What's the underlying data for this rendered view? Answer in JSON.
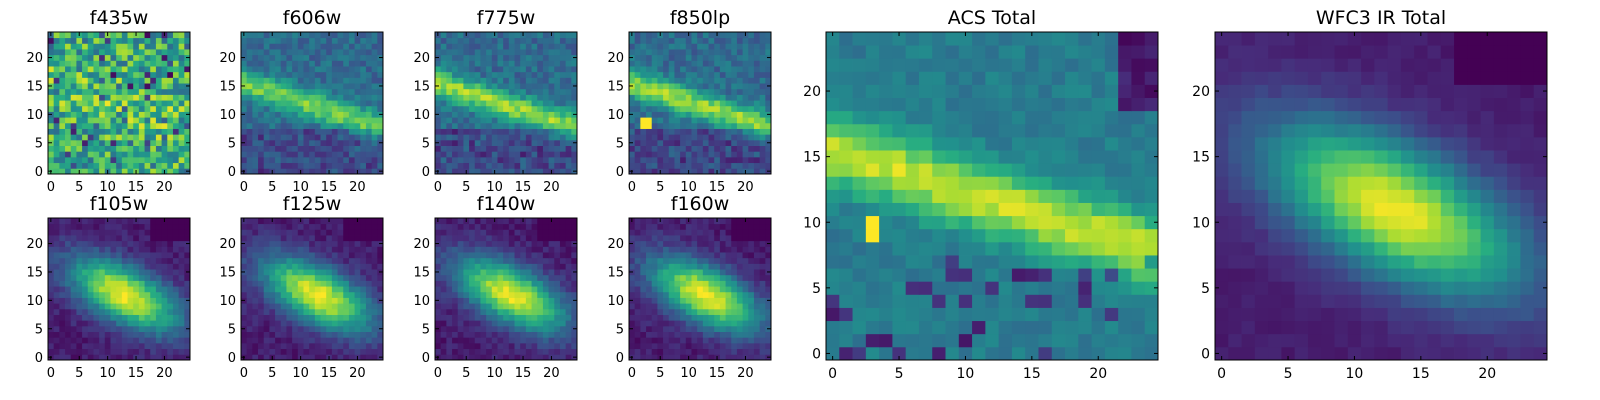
{
  "chart_data": [
    {
      "type": "heatmap",
      "title": "f435w",
      "xticks": [
        "0",
        "5",
        "10",
        "15",
        "20"
      ],
      "yticks": [
        "0",
        "5",
        "10",
        "15",
        "20"
      ],
      "xlim": [
        -0.5,
        24.5
      ],
      "ylim": [
        -0.5,
        24.5
      ],
      "colormap": "viridis",
      "profile": "noise"
    },
    {
      "type": "heatmap",
      "title": "f606w",
      "xticks": [
        "0",
        "5",
        "10",
        "15",
        "20"
      ],
      "yticks": [
        "0",
        "5",
        "10",
        "15",
        "20"
      ],
      "xlim": [
        -0.5,
        24.5
      ],
      "ylim": [
        -0.5,
        24.5
      ],
      "colormap": "viridis",
      "profile": "faint_band"
    },
    {
      "type": "heatmap",
      "title": "f775w",
      "xticks": [
        "0",
        "5",
        "10",
        "15",
        "20"
      ],
      "yticks": [
        "0",
        "5",
        "10",
        "15",
        "20"
      ],
      "xlim": [
        -0.5,
        24.5
      ],
      "ylim": [
        -0.5,
        24.5
      ],
      "colormap": "viridis",
      "profile": "band"
    },
    {
      "type": "heatmap",
      "title": "f850lp",
      "xticks": [
        "0",
        "5",
        "10",
        "15",
        "20"
      ],
      "yticks": [
        "0",
        "5",
        "10",
        "15",
        "20"
      ],
      "xlim": [
        -0.5,
        24.5
      ],
      "ylim": [
        -0.5,
        24.5
      ],
      "colormap": "viridis",
      "profile": "band_spot"
    },
    {
      "type": "heatmap",
      "title": "f105w",
      "xticks": [
        "0",
        "5",
        "10",
        "15",
        "20"
      ],
      "yticks": [
        "0",
        "5",
        "10",
        "15",
        "20"
      ],
      "xlim": [
        -0.5,
        24.5
      ],
      "ylim": [
        -0.5,
        24.5
      ],
      "colormap": "viridis",
      "profile": "ir"
    },
    {
      "type": "heatmap",
      "title": "f125w",
      "xticks": [
        "0",
        "5",
        "10",
        "15",
        "20"
      ],
      "yticks": [
        "0",
        "5",
        "10",
        "15",
        "20"
      ],
      "xlim": [
        -0.5,
        24.5
      ],
      "ylim": [
        -0.5,
        24.5
      ],
      "colormap": "viridis",
      "profile": "ir"
    },
    {
      "type": "heatmap",
      "title": "f140w",
      "xticks": [
        "0",
        "5",
        "10",
        "15",
        "20"
      ],
      "yticks": [
        "0",
        "5",
        "10",
        "15",
        "20"
      ],
      "xlim": [
        -0.5,
        24.5
      ],
      "ylim": [
        -0.5,
        24.5
      ],
      "colormap": "viridis",
      "profile": "ir"
    },
    {
      "type": "heatmap",
      "title": "f160w",
      "xticks": [
        "0",
        "5",
        "10",
        "15",
        "20"
      ],
      "yticks": [
        "0",
        "5",
        "10",
        "15",
        "20"
      ],
      "xlim": [
        -0.5,
        24.5
      ],
      "ylim": [
        -0.5,
        24.5
      ],
      "colormap": "viridis",
      "profile": "ir"
    },
    {
      "type": "heatmap",
      "title": "ACS Total",
      "xticks": [
        "0",
        "5",
        "10",
        "15",
        "20"
      ],
      "yticks": [
        "0",
        "5",
        "10",
        "15",
        "20"
      ],
      "xlim": [
        -0.5,
        24.5
      ],
      "ylim": [
        -0.5,
        24.5
      ],
      "colormap": "viridis",
      "profile": "acs_total"
    },
    {
      "type": "heatmap",
      "title": "WFC3 IR Total",
      "xticks": [
        "0",
        "5",
        "10",
        "15",
        "20"
      ],
      "yticks": [
        "0",
        "5",
        "10",
        "15",
        "20"
      ],
      "xlim": [
        -0.5,
        24.5
      ],
      "ylim": [
        -0.5,
        24.5
      ],
      "colormap": "viridis",
      "profile": "ir_total"
    }
  ]
}
